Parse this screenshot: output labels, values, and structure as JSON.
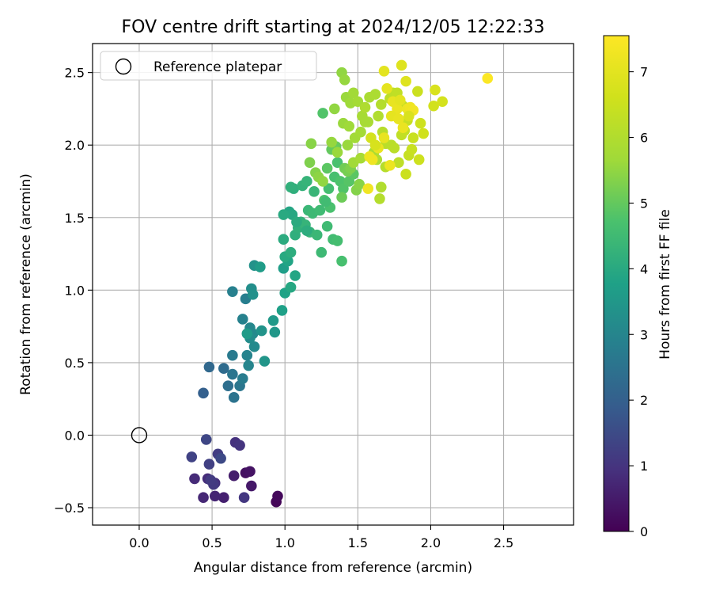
{
  "chart_data": {
    "type": "scatter",
    "title": "FOV centre drift starting at 2024/12/05 12:22:33",
    "xlabel": "Angular distance from reference (arcmin)",
    "ylabel": "Rotation from reference (arcmin)",
    "xlim": [
      -0.32,
      2.98
    ],
    "ylim": [
      -0.62,
      2.7
    ],
    "x_ticks": [
      0.0,
      0.5,
      1.0,
      1.5,
      2.0,
      2.5
    ],
    "x_tick_labels": [
      "0.0",
      "0.5",
      "1.0",
      "1.5",
      "2.0",
      "2.5"
    ],
    "y_ticks": [
      -0.5,
      0.0,
      0.5,
      1.0,
      1.5,
      2.0,
      2.5
    ],
    "y_tick_labels": [
      "−0.5",
      "0.0",
      "0.5",
      "1.0",
      "1.5",
      "2.0",
      "2.5"
    ],
    "grid": true,
    "legend": {
      "position": "top-left",
      "entries": [
        {
          "label": "Reference platepar",
          "marker": "open-circle"
        }
      ]
    },
    "reference": {
      "x": 0.0,
      "y": 0.0
    },
    "colorbar": {
      "label": "Hours from first FF file",
      "colormap": "viridis",
      "range": [
        0,
        7.55
      ],
      "ticks": [
        0,
        1,
        2,
        3,
        4,
        5,
        6,
        7
      ],
      "tick_labels": [
        "0",
        "1",
        "2",
        "3",
        "4",
        "5",
        "6",
        "7"
      ]
    },
    "points": [
      [
        0.94,
        -0.46,
        0.1
      ],
      [
        0.95,
        -0.42,
        0.15
      ],
      [
        0.73,
        -0.26,
        0.3
      ],
      [
        0.76,
        -0.25,
        0.35
      ],
      [
        0.77,
        -0.35,
        0.45
      ],
      [
        0.65,
        -0.28,
        0.55
      ],
      [
        0.58,
        -0.43,
        0.6
      ],
      [
        0.52,
        -0.42,
        0.7
      ],
      [
        0.44,
        -0.43,
        0.75
      ],
      [
        0.38,
        -0.3,
        0.8
      ],
      [
        0.47,
        -0.3,
        0.85
      ],
      [
        0.52,
        -0.33,
        0.9
      ],
      [
        0.66,
        -0.05,
        0.95
      ],
      [
        0.69,
        -0.07,
        1.0
      ],
      [
        0.72,
        -0.43,
        1.05
      ],
      [
        0.51,
        -0.34,
        1.1
      ],
      [
        0.49,
        -0.31,
        1.15
      ],
      [
        0.54,
        -0.13,
        1.2
      ],
      [
        0.48,
        -0.2,
        1.25
      ],
      [
        0.36,
        -0.15,
        1.3
      ],
      [
        0.46,
        -0.03,
        1.4
      ],
      [
        0.56,
        -0.16,
        1.45
      ],
      [
        0.44,
        0.29,
        2.0
      ],
      [
        0.48,
        0.47,
        2.2
      ],
      [
        0.58,
        0.46,
        2.3
      ],
      [
        0.61,
        0.34,
        2.4
      ],
      [
        0.65,
        0.26,
        2.5
      ],
      [
        0.64,
        0.42,
        2.55
      ],
      [
        0.69,
        0.34,
        2.6
      ],
      [
        0.64,
        0.55,
        2.7
      ],
      [
        0.71,
        0.39,
        2.75
      ],
      [
        0.73,
        0.94,
        2.8
      ],
      [
        0.64,
        0.99,
        2.85
      ],
      [
        0.71,
        0.8,
        2.9
      ],
      [
        0.74,
        0.55,
        2.95
      ],
      [
        0.75,
        0.48,
        3.0
      ],
      [
        0.76,
        0.74,
        3.05
      ],
      [
        0.78,
        0.7,
        3.1
      ],
      [
        0.79,
        0.61,
        3.15
      ],
      [
        0.76,
        0.67,
        3.2
      ],
      [
        0.77,
        1.01,
        3.25
      ],
      [
        0.78,
        0.97,
        3.3
      ],
      [
        0.79,
        1.17,
        3.35
      ],
      [
        0.84,
        0.72,
        3.4
      ],
      [
        0.86,
        0.51,
        3.45
      ],
      [
        0.93,
        0.71,
        3.5
      ],
      [
        0.92,
        0.79,
        3.55
      ],
      [
        0.74,
        0.7,
        3.6
      ],
      [
        0.83,
        1.16,
        3.65
      ],
      [
        0.99,
        1.15,
        3.7
      ],
      [
        0.98,
        0.86,
        3.75
      ],
      [
        1.0,
        0.98,
        3.8
      ],
      [
        1.02,
        1.2,
        3.85
      ],
      [
        1.07,
        1.1,
        3.9
      ],
      [
        1.04,
        1.02,
        3.95
      ],
      [
        1.0,
        1.23,
        4.0
      ],
      [
        0.99,
        1.35,
        4.05
      ],
      [
        1.04,
        1.26,
        4.1
      ],
      [
        1.07,
        1.38,
        4.15
      ],
      [
        1.09,
        1.43,
        4.2
      ],
      [
        1.11,
        1.47,
        4.25
      ],
      [
        1.14,
        1.45,
        4.3
      ],
      [
        1.17,
        1.4,
        4.35
      ],
      [
        1.22,
        1.38,
        4.4
      ],
      [
        1.25,
        1.26,
        4.45
      ],
      [
        1.29,
        1.44,
        4.5
      ],
      [
        1.33,
        1.35,
        4.55
      ],
      [
        1.36,
        1.34,
        4.6
      ],
      [
        1.39,
        1.2,
        4.65
      ],
      [
        1.31,
        1.57,
        4.7
      ],
      [
        1.27,
        1.62,
        4.75
      ],
      [
        1.03,
        1.54,
        3.9
      ],
      [
        1.05,
        1.52,
        3.95
      ],
      [
        0.99,
        1.52,
        4.0
      ],
      [
        1.08,
        1.47,
        4.05
      ],
      [
        1.15,
        1.41,
        4.1
      ],
      [
        1.06,
        1.7,
        4.15
      ],
      [
        1.04,
        1.71,
        4.2
      ],
      [
        1.12,
        1.72,
        4.25
      ],
      [
        1.15,
        1.75,
        4.3
      ],
      [
        1.2,
        1.68,
        4.35
      ],
      [
        1.16,
        1.55,
        4.4
      ],
      [
        1.19,
        1.53,
        4.45
      ],
      [
        1.24,
        1.55,
        4.5
      ],
      [
        1.28,
        1.61,
        4.55
      ],
      [
        1.3,
        1.7,
        4.6
      ],
      [
        1.34,
        1.78,
        4.65
      ],
      [
        1.36,
        1.88,
        4.7
      ],
      [
        1.38,
        1.75,
        4.75
      ],
      [
        1.4,
        1.7,
        4.8
      ],
      [
        1.44,
        1.75,
        4.85
      ],
      [
        1.47,
        1.8,
        4.9
      ],
      [
        1.26,
        2.22,
        4.8
      ],
      [
        1.29,
        1.84,
        4.9
      ],
      [
        1.32,
        1.97,
        5.0
      ],
      [
        1.35,
        1.99,
        5.05
      ],
      [
        1.39,
        1.64,
        5.1
      ],
      [
        1.41,
        1.84,
        5.15
      ],
      [
        1.43,
        1.82,
        5.2
      ],
      [
        1.45,
        1.84,
        5.3
      ],
      [
        1.49,
        1.69,
        5.35
      ],
      [
        1.51,
        1.73,
        5.4
      ],
      [
        1.17,
        1.88,
        5.3
      ],
      [
        1.21,
        1.81,
        5.35
      ],
      [
        1.18,
        2.01,
        5.4
      ],
      [
        1.23,
        1.78,
        5.45
      ],
      [
        1.26,
        1.75,
        5.5
      ],
      [
        1.32,
        2.02,
        5.55
      ],
      [
        1.36,
        1.95,
        5.6
      ],
      [
        1.39,
        2.5,
        5.5
      ],
      [
        1.41,
        2.45,
        5.55
      ],
      [
        1.42,
        2.33,
        5.6
      ],
      [
        1.45,
        2.29,
        5.65
      ],
      [
        1.47,
        2.36,
        5.7
      ],
      [
        1.5,
        2.3,
        5.75
      ],
      [
        1.53,
        2.2,
        5.8
      ],
      [
        1.57,
        2.16,
        5.85
      ],
      [
        1.4,
        2.15,
        5.6
      ],
      [
        1.44,
        2.13,
        5.65
      ],
      [
        1.48,
        2.05,
        5.7
      ],
      [
        1.52,
        2.09,
        5.75
      ],
      [
        1.55,
        2.16,
        5.8
      ],
      [
        1.58,
        2.33,
        5.85
      ],
      [
        1.62,
        2.35,
        5.9
      ],
      [
        1.55,
        2.26,
        5.95
      ],
      [
        1.64,
        2.2,
        6.0
      ],
      [
        1.66,
        2.28,
        6.05
      ],
      [
        1.67,
        2.09,
        6.1
      ],
      [
        1.69,
        2.01,
        6.15
      ],
      [
        1.72,
        2.32,
        6.2
      ],
      [
        1.74,
        2.36,
        6.25
      ],
      [
        1.77,
        2.36,
        6.3
      ],
      [
        1.81,
        2.27,
        6.35
      ],
      [
        1.84,
        2.17,
        6.4
      ],
      [
        1.88,
        2.05,
        6.45
      ],
      [
        1.91,
        2.37,
        6.5
      ],
      [
        1.93,
        2.15,
        6.55
      ],
      [
        1.34,
        2.25,
        5.5
      ],
      [
        1.43,
        2.0,
        5.6
      ],
      [
        1.47,
        1.88,
        5.7
      ],
      [
        1.52,
        1.91,
        5.8
      ],
      [
        1.61,
        1.95,
        5.9
      ],
      [
        1.63,
        1.9,
        5.95
      ],
      [
        1.66,
        1.71,
        6.0
      ],
      [
        1.65,
        1.63,
        6.05
      ],
      [
        1.69,
        1.85,
        6.1
      ],
      [
        1.73,
        2.0,
        6.15
      ],
      [
        1.75,
        1.98,
        6.2
      ],
      [
        1.78,
        1.88,
        6.25
      ],
      [
        1.8,
        2.07,
        6.3
      ],
      [
        1.82,
        2.1,
        6.35
      ],
      [
        1.85,
        1.93,
        6.4
      ],
      [
        1.87,
        1.97,
        6.45
      ],
      [
        1.83,
        1.8,
        6.5
      ],
      [
        1.92,
        1.9,
        6.55
      ],
      [
        1.95,
        2.08,
        6.6
      ],
      [
        2.02,
        2.27,
        6.65
      ],
      [
        2.08,
        2.3,
        6.7
      ],
      [
        2.03,
        2.38,
        6.8
      ],
      [
        1.8,
        2.55,
        6.9
      ],
      [
        1.68,
        2.51,
        7.0
      ],
      [
        1.7,
        2.39,
        7.05
      ],
      [
        1.74,
        2.3,
        7.1
      ],
      [
        1.77,
        2.25,
        7.15
      ],
      [
        1.84,
        2.25,
        7.2
      ],
      [
        1.86,
        2.26,
        7.25
      ],
      [
        1.88,
        2.24,
        7.3
      ],
      [
        1.83,
        2.44,
        6.9
      ],
      [
        1.79,
        2.31,
        7.0
      ],
      [
        1.73,
        2.2,
        7.05
      ],
      [
        1.68,
        2.05,
        7.1
      ],
      [
        1.64,
        1.98,
        7.15
      ],
      [
        1.58,
        1.92,
        7.2
      ],
      [
        1.6,
        1.9,
        7.25
      ],
      [
        1.57,
        1.7,
        7.3
      ],
      [
        1.72,
        1.86,
        7.2
      ],
      [
        2.39,
        2.46,
        7.5
      ],
      [
        1.78,
        2.18,
        7.1
      ],
      [
        1.81,
        2.12,
        7.15
      ],
      [
        1.85,
        2.2,
        6.8
      ],
      [
        1.59,
        2.05,
        6.7
      ],
      [
        1.62,
        2.0,
        6.75
      ]
    ]
  }
}
